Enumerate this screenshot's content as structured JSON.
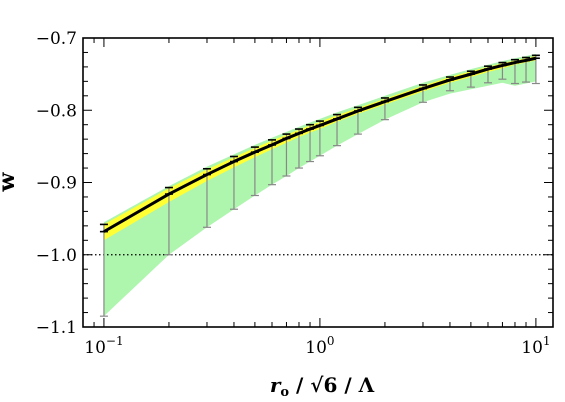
{
  "chart_data": {
    "type": "line",
    "xscale": "log",
    "xlim": [
      0.08,
      12
    ],
    "ylim": [
      -1.1,
      -0.7
    ],
    "xlabel": "r_o / √6/Λ",
    "ylabel": "w",
    "x_ticks": [
      {
        "value": 0.1,
        "base": "10",
        "exp": "−1"
      },
      {
        "value": 1,
        "base": "10",
        "exp": "0"
      },
      {
        "value": 10,
        "base": "10",
        "exp": "1"
      }
    ],
    "y_ticks": [
      {
        "value": -1.1,
        "label": "−1.1"
      },
      {
        "value": -1.0,
        "label": "−1.0"
      },
      {
        "value": -0.9,
        "label": "−0.9"
      },
      {
        "value": -0.8,
        "label": "−0.8"
      },
      {
        "value": -0.7,
        "label": "−0.7"
      }
    ],
    "reference_line": {
      "y": -1.0,
      "style": "dotted"
    },
    "colors": {
      "line": "#000000",
      "yellow_band": "#ffff33",
      "green_band": "#aef5ae",
      "errorbar": "#888888"
    },
    "x": [
      0.1,
      0.2,
      0.3,
      0.4,
      0.5,
      0.6,
      0.7,
      0.8,
      0.9,
      1.0,
      1.2,
      1.5,
      2,
      3,
      4,
      5,
      6,
      7,
      8,
      9,
      10
    ],
    "y": [
      -0.968,
      -0.916,
      -0.889,
      -0.871,
      -0.858,
      -0.848,
      -0.839,
      -0.832,
      -0.826,
      -0.821,
      -0.812,
      -0.801,
      -0.788,
      -0.77,
      -0.758,
      -0.75,
      -0.743,
      -0.738,
      -0.734,
      -0.731,
      -0.728
    ],
    "err_upper": [
      -0.958,
      -0.907,
      -0.881,
      -0.864,
      -0.851,
      -0.841,
      -0.833,
      -0.826,
      -0.82,
      -0.815,
      -0.806,
      -0.796,
      -0.783,
      -0.765,
      -0.754,
      -0.746,
      -0.739,
      -0.734,
      -0.73,
      -0.727,
      -0.724
    ],
    "err_lower": [
      -1.085,
      -1.0,
      -0.962,
      -0.937,
      -0.918,
      -0.903,
      -0.891,
      -0.88,
      -0.871,
      -0.863,
      -0.849,
      -0.833,
      -0.813,
      -0.789,
      -0.773,
      -0.768,
      -0.762,
      -0.757,
      -0.763,
      -0.761,
      -0.763
    ],
    "yellow_band_upper": [
      -0.958,
      -0.908,
      -0.882,
      -0.865,
      -0.852,
      -0.842,
      -0.834,
      -0.827,
      -0.821,
      -0.816,
      -0.807,
      -0.797,
      -0.784,
      -0.766,
      -0.754,
      -0.746,
      -0.74,
      -0.735,
      -0.731,
      -0.728,
      -0.725
    ],
    "yellow_band_lower": [
      -0.98,
      -0.927,
      -0.898,
      -0.879,
      -0.865,
      -0.854,
      -0.845,
      -0.837,
      -0.831,
      -0.826,
      -0.816,
      -0.805,
      -0.792,
      -0.774,
      -0.762,
      -0.754,
      -0.747,
      -0.742,
      -0.737,
      -0.734,
      -0.731
    ],
    "green_band_upper": [
      -0.955,
      -0.905,
      -0.878,
      -0.861,
      -0.848,
      -0.838,
      -0.83,
      -0.823,
      -0.817,
      -0.812,
      -0.803,
      -0.793,
      -0.78,
      -0.762,
      -0.751,
      -0.743,
      -0.737,
      -0.732,
      -0.728,
      -0.725,
      -0.722
    ],
    "green_band_lower": [
      -1.085,
      -1.0,
      -0.962,
      -0.937,
      -0.918,
      -0.903,
      -0.891,
      -0.88,
      -0.871,
      -0.863,
      -0.849,
      -0.833,
      -0.813,
      -0.789,
      -0.777,
      -0.771,
      -0.766,
      -0.762,
      -0.766,
      -0.763,
      -0.76
    ]
  }
}
